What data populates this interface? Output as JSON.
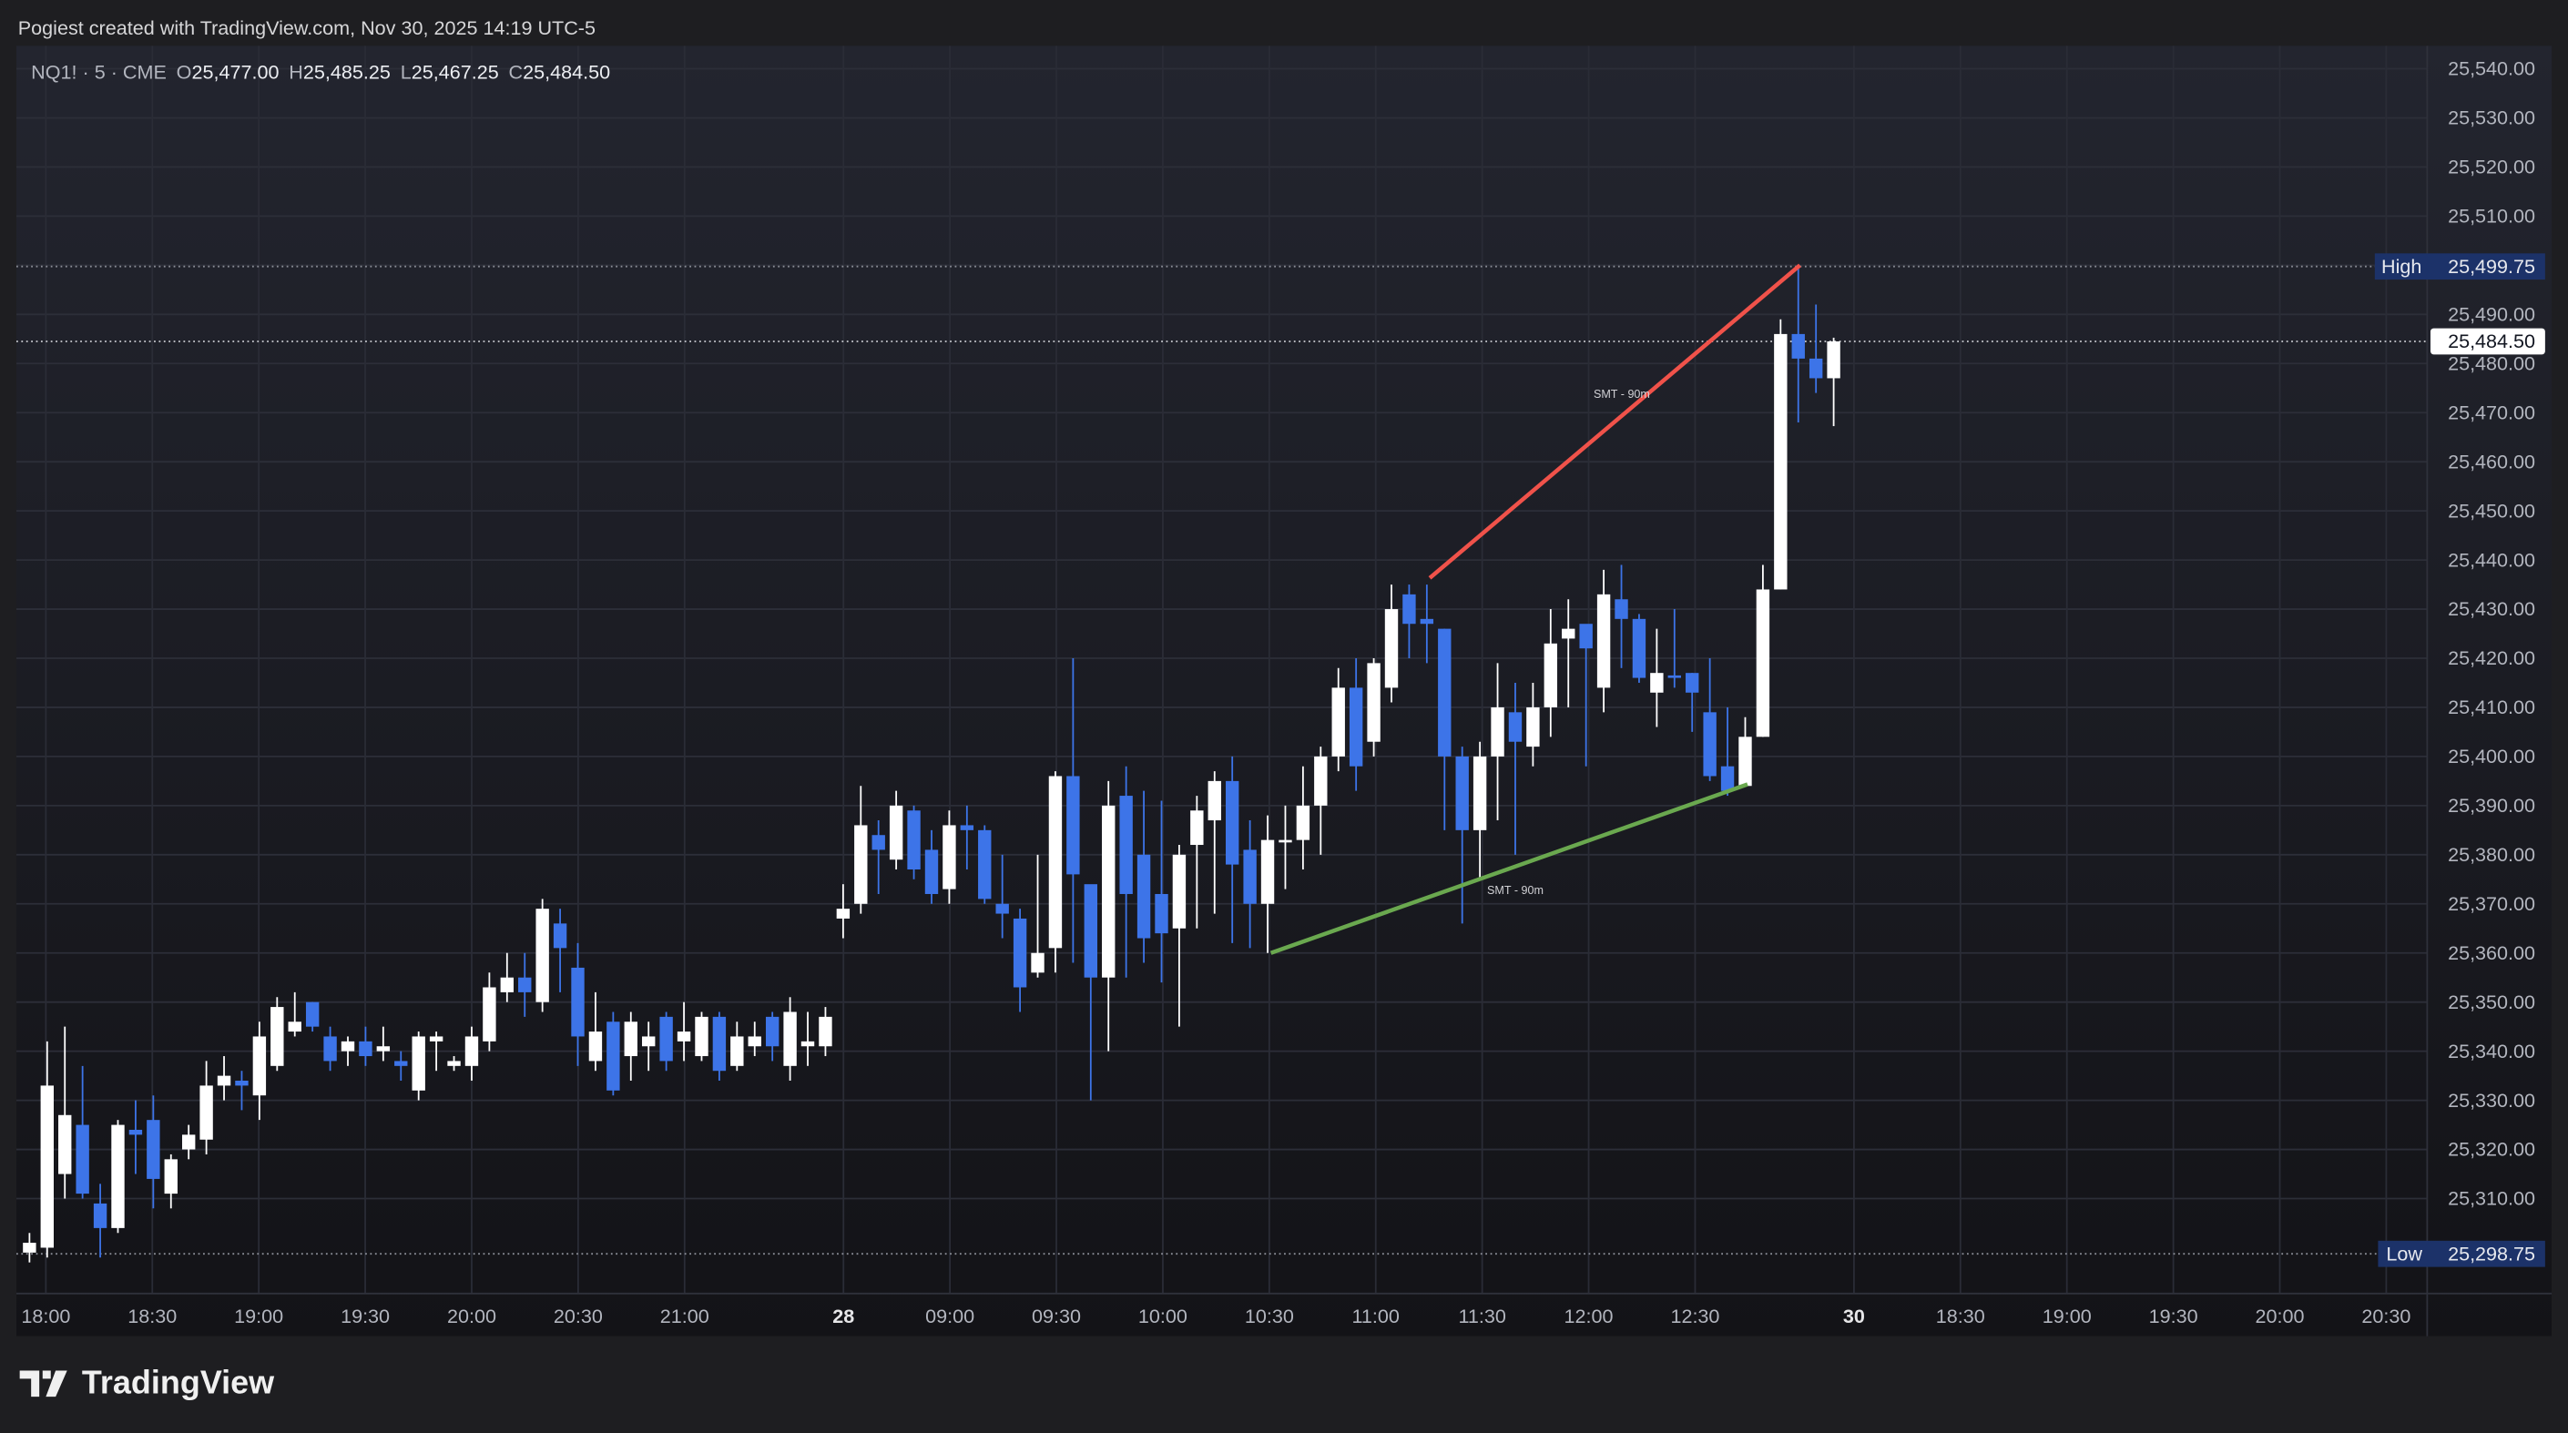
{
  "header": {
    "title": "Pogiest created with TradingView.com, Nov 30, 2025 14:19 UTC-5"
  },
  "legend": {
    "symbol": "NQ1! · 5 · CME",
    "o_label": "O",
    "o": "25,477.00",
    "h_label": "H",
    "h": "25,485.25",
    "l_label": "L",
    "l": "25,467.25",
    "c_label": "C",
    "c": "25,484.50"
  },
  "price_axis": {
    "ticks": [
      "25,540.00",
      "25,530.00",
      "25,520.00",
      "25,510.00",
      "25,490.00",
      "25,480.00",
      "25,470.00",
      "25,460.00",
      "25,450.00",
      "25,440.00",
      "25,430.00",
      "25,420.00",
      "25,410.00",
      "25,400.00",
      "25,390.00",
      "25,380.00",
      "25,370.00",
      "25,360.00",
      "25,350.00",
      "25,340.00",
      "25,330.00",
      "25,320.00",
      "25,310.00"
    ],
    "high": {
      "label": "High",
      "value": "25,499.75"
    },
    "low": {
      "label": "Low",
      "value": "25,298.75"
    },
    "last": "25,484.50"
  },
  "time_axis": {
    "labels": [
      "18:00",
      "18:30",
      "19:00",
      "19:30",
      "20:00",
      "20:30",
      "21:00",
      "28",
      "09:00",
      "09:30",
      "10:00",
      "10:30",
      "11:00",
      "11:30",
      "12:00",
      "12:30",
      "30",
      "18:30",
      "19:00",
      "19:30",
      "20:00",
      "20:30"
    ]
  },
  "drawings": {
    "smt_top_label": "SMT - 90m",
    "smt_bottom_label": "SMT - 90m",
    "smt_top_color": "#f0524a",
    "smt_bottom_color": "#6aa84f"
  },
  "colors": {
    "up": "#ffffff",
    "down": "#3d74e8",
    "badge": "#1c3269"
  },
  "footer": {
    "brand": "TradingView"
  },
  "chart_data": {
    "type": "candlestick",
    "symbol": "NQ1!",
    "interval": "5",
    "ohlc": [
      [
        25299,
        25303,
        25297,
        25301
      ],
      [
        25300,
        25342,
        25298,
        25333
      ],
      [
        25315,
        25345,
        25310,
        25327
      ],
      [
        25325,
        25337,
        25310,
        25311
      ],
      [
        25309,
        25313,
        25298,
        25304
      ],
      [
        25304,
        25326,
        25303,
        25325
      ],
      [
        25324,
        25330,
        25315,
        25323
      ],
      [
        25326,
        25331,
        25308,
        25314
      ],
      [
        25311,
        25319,
        25308,
        25318
      ],
      [
        25320,
        25325,
        25318,
        25323
      ],
      [
        25322,
        25338,
        25319,
        25333
      ],
      [
        25333,
        25339,
        25330,
        25335
      ],
      [
        25334,
        25336,
        25328,
        25333
      ],
      [
        25331,
        25346,
        25326,
        25343
      ],
      [
        25337,
        25351,
        25336,
        25349
      ],
      [
        25344,
        25352,
        25343,
        25346
      ],
      [
        25350,
        25350,
        25344,
        25345
      ],
      [
        25343,
        25345,
        25336,
        25338
      ],
      [
        25340,
        25343,
        25337,
        25342
      ],
      [
        25342,
        25345,
        25337,
        25339
      ],
      [
        25340,
        25345,
        25338,
        25341
      ],
      [
        25338,
        25340,
        25334,
        25337
      ],
      [
        25332,
        25344,
        25330,
        25343
      ],
      [
        25342,
        25344,
        25336,
        25343
      ],
      [
        25337,
        25339,
        25336,
        25338
      ],
      [
        25337,
        25345,
        25334,
        25343
      ],
      [
        25342,
        25356,
        25340,
        25353
      ],
      [
        25352,
        25360,
        25350,
        25355
      ],
      [
        25355,
        25360,
        25347,
        25352
      ],
      [
        25350,
        25371,
        25348,
        25369
      ],
      [
        25366,
        25369,
        25352,
        25361
      ],
      [
        25357,
        25362,
        25337,
        25343
      ],
      [
        25338,
        25352,
        25336,
        25344
      ],
      [
        25346,
        25348,
        25331,
        25332
      ],
      [
        25339,
        25348,
        25334,
        25346
      ],
      [
        25341,
        25346,
        25336,
        25343
      ],
      [
        25347,
        25348,
        25336,
        25338
      ],
      [
        25342,
        25350,
        25338,
        25344
      ],
      [
        25339,
        25348,
        25338,
        25347
      ],
      [
        25347,
        25348,
        25334,
        25336
      ],
      [
        25337,
        25346,
        25336,
        25343
      ],
      [
        25341,
        25346,
        25339,
        25343
      ],
      [
        25347,
        25348,
        25338,
        25341
      ],
      [
        25337,
        25351,
        25334,
        25348
      ],
      [
        25341,
        25348,
        25337,
        25342
      ],
      [
        25341,
        25349,
        25339,
        25347
      ],
      [
        25367,
        25374,
        25363,
        25369
      ],
      [
        25370,
        25394,
        25368,
        25386
      ],
      [
        25384,
        25387,
        25372,
        25381
      ],
      [
        25379,
        25393,
        25377,
        25390
      ],
      [
        25389,
        25390,
        25375,
        25377
      ],
      [
        25381,
        25385,
        25370,
        25372
      ],
      [
        25373,
        25389,
        25370,
        25386
      ],
      [
        25386,
        25390,
        25377,
        25385
      ],
      [
        25385,
        25386,
        25370,
        25371
      ],
      [
        25370,
        25380,
        25363,
        25368
      ],
      [
        25367,
        25369,
        25348,
        25353
      ],
      [
        25356,
        25380,
        25355,
        25360
      ],
      [
        25361,
        25397,
        25356,
        25396
      ],
      [
        25396,
        25420,
        25358,
        25376
      ],
      [
        25374,
        25373,
        25330,
        25355
      ],
      [
        25355,
        25395,
        25340,
        25390
      ],
      [
        25392,
        25398,
        25355,
        25372
      ],
      [
        25380,
        25393,
        25358,
        25363
      ],
      [
        25372,
        25391,
        25354,
        25364
      ],
      [
        25365,
        25382,
        25345,
        25380
      ],
      [
        25382,
        25392,
        25365,
        25389
      ],
      [
        25387,
        25397,
        25368,
        25395
      ],
      [
        25395,
        25400,
        25362,
        25378
      ],
      [
        25381,
        25387,
        25361,
        25370
      ],
      [
        25370,
        25388,
        25360,
        25383
      ],
      [
        25383,
        25390,
        25373,
        25383
      ],
      [
        25383,
        25398,
        25377,
        25390
      ],
      [
        25390,
        25402,
        25380,
        25400
      ],
      [
        25400,
        25418,
        25397,
        25414
      ],
      [
        25414,
        25420,
        25393,
        25398
      ],
      [
        25403,
        25420,
        25400,
        25419
      ],
      [
        25414,
        25435,
        25411,
        25430
      ],
      [
        25433,
        25435,
        25420,
        25427
      ],
      [
        25428,
        25435,
        25419,
        25427
      ],
      [
        25426,
        25426,
        25385,
        25400
      ],
      [
        25400,
        25402,
        25366,
        25385
      ],
      [
        25385,
        25403,
        25375,
        25400
      ],
      [
        25400,
        25419,
        25387,
        25410
      ],
      [
        25409,
        25415,
        25380,
        25403
      ],
      [
        25402,
        25415,
        25398,
        25410
      ],
      [
        25410,
        25430,
        25404,
        25423
      ],
      [
        25424,
        25432,
        25410,
        25426
      ],
      [
        25427,
        25425,
        25398,
        25422
      ],
      [
        25414,
        25438,
        25409,
        25433
      ],
      [
        25432,
        25439,
        25418,
        25428
      ],
      [
        25428,
        25429,
        25415,
        25416
      ],
      [
        25413,
        25426,
        25406,
        25417
      ],
      [
        25416.5,
        25430,
        25414,
        25416
      ],
      [
        25417,
        25417,
        25405,
        25413
      ],
      [
        25409,
        25420,
        25395,
        25396
      ],
      [
        25398,
        25410,
        25392,
        25393
      ],
      [
        25394,
        25408,
        25394,
        25404
      ],
      [
        25404,
        25439,
        25404,
        25434
      ],
      [
        25434,
        25489,
        25434,
        25486
      ],
      [
        25486,
        25499.75,
        25468,
        25481
      ],
      [
        25481,
        25492,
        25474,
        25477
      ],
      [
        25477,
        25485.25,
        25467.25,
        25484.5
      ]
    ],
    "ylim": [
      25295,
      25545
    ],
    "grid": true
  }
}
